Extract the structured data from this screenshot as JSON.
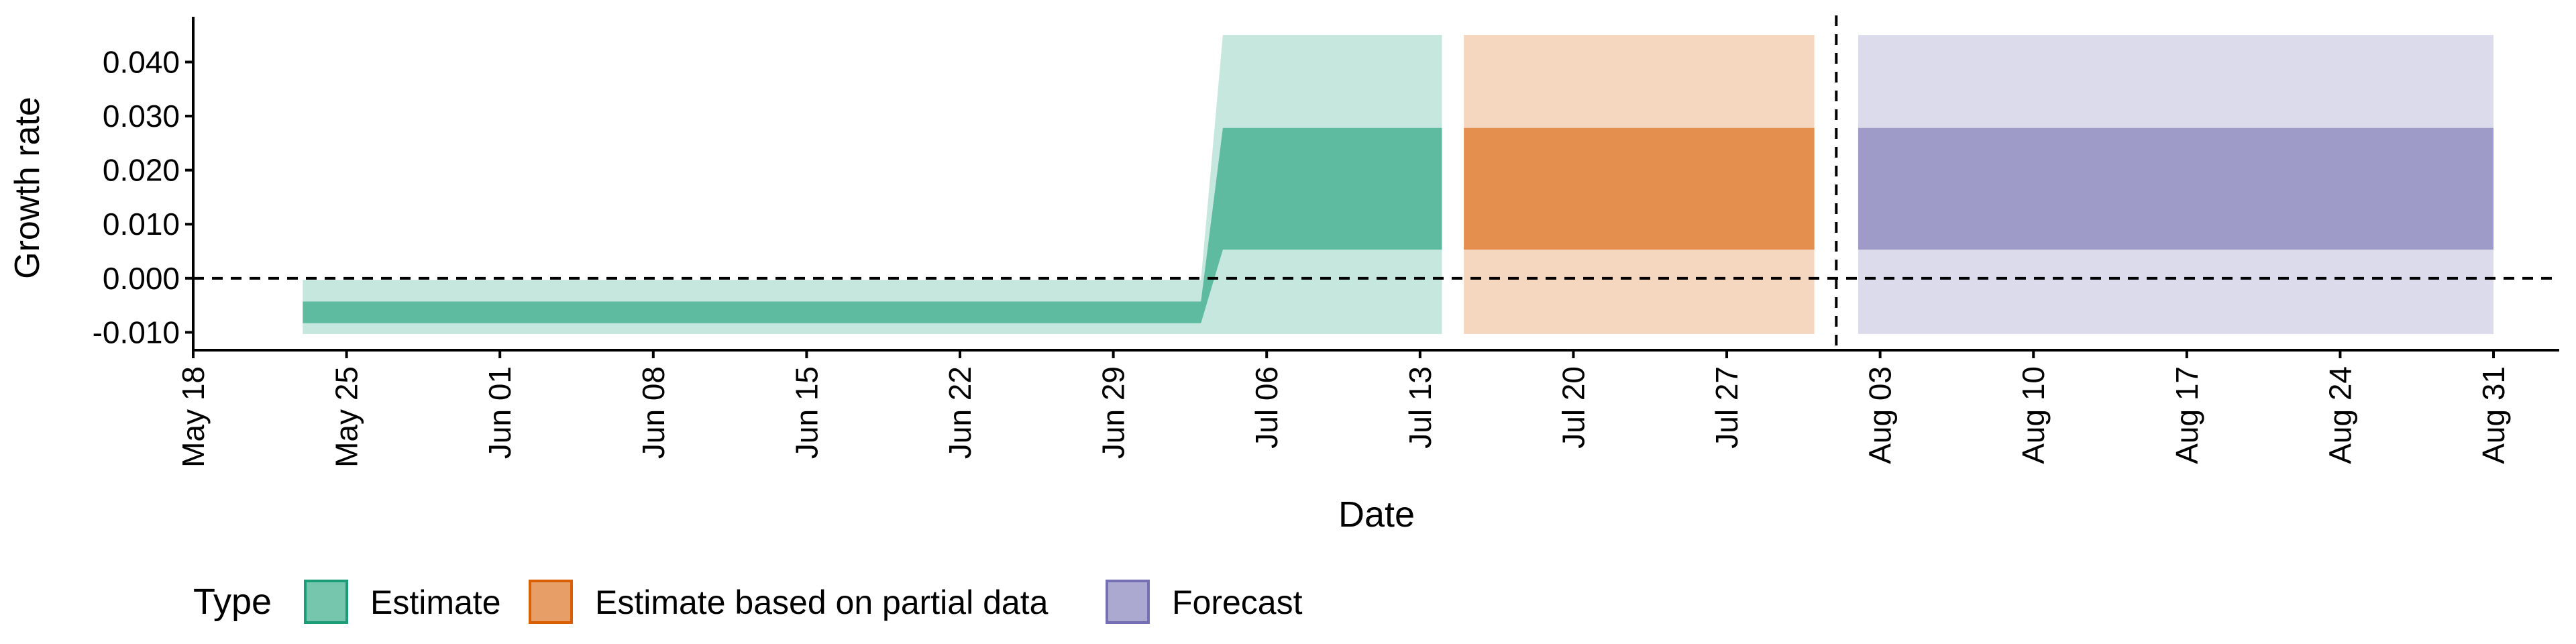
{
  "chart_data": {
    "type": "area",
    "xlabel": "Date",
    "ylabel": "Growth rate",
    "xlim": [
      "2020-05-18",
      "2020-09-03"
    ],
    "ylim": [
      -0.0133,
      0.048
    ],
    "x_ticks": [
      "2020-05-18",
      "2020-05-25",
      "2020-06-01",
      "2020-06-08",
      "2020-06-15",
      "2020-06-22",
      "2020-06-29",
      "2020-07-06",
      "2020-07-13",
      "2020-07-20",
      "2020-07-27",
      "2020-08-03",
      "2020-08-10",
      "2020-08-17",
      "2020-08-24",
      "2020-08-31"
    ],
    "x_tick_labels": [
      "May 18",
      "May 25",
      "Jun 01",
      "Jun 08",
      "Jun 15",
      "Jun 22",
      "Jun 29",
      "Jul 06",
      "Jul 13",
      "Jul 20",
      "Jul 27",
      "Aug 03",
      "Aug 10",
      "Aug 17",
      "Aug 24",
      "Aug 31"
    ],
    "y_ticks": [
      -0.01,
      0.0,
      0.01,
      0.02,
      0.03,
      0.04
    ],
    "y_tick_labels": [
      "-0.010",
      "0.000",
      "0.010",
      "0.020",
      "0.030",
      "0.040"
    ],
    "hlines": [
      0
    ],
    "vlines": [
      "2020-08-01"
    ],
    "legend": {
      "title": "Type",
      "position": "bottom",
      "entries": [
        "Estimate",
        "Estimate based on partial data",
        "Forecast"
      ]
    },
    "colors": {
      "Estimate": "#1b9e77",
      "Estimate based on partial data": "#d95f02",
      "Forecast": "#7570b3"
    },
    "series": [
      {
        "name": "Estimate",
        "x": [
          "2020-05-23",
          "2020-07-03",
          "2020-07-04",
          "2020-07-14"
        ],
        "lower_90": [
          -0.0103,
          -0.0103,
          -0.0103,
          -0.0103
        ],
        "upper_90": [
          -0.0003,
          -0.0003,
          0.045,
          0.045
        ],
        "lower_50": [
          -0.0083,
          -0.0083,
          0.0053,
          0.0053
        ],
        "upper_50": [
          -0.0043,
          -0.0043,
          0.0278,
          0.0278
        ]
      },
      {
        "name": "Estimate based on partial data",
        "x": [
          "2020-07-15",
          "2020-07-31"
        ],
        "lower_90": [
          -0.0103,
          -0.0103
        ],
        "upper_90": [
          0.045,
          0.045
        ],
        "lower_50": [
          0.0053,
          0.0053
        ],
        "upper_50": [
          0.0278,
          0.0278
        ]
      },
      {
        "name": "Forecast",
        "x": [
          "2020-08-02",
          "2020-08-31"
        ],
        "lower_90": [
          -0.0103,
          -0.0103
        ],
        "upper_90": [
          0.045,
          0.045
        ],
        "lower_50": [
          0.0053,
          0.0053
        ],
        "upper_50": [
          0.0278,
          0.0278
        ]
      }
    ]
  }
}
